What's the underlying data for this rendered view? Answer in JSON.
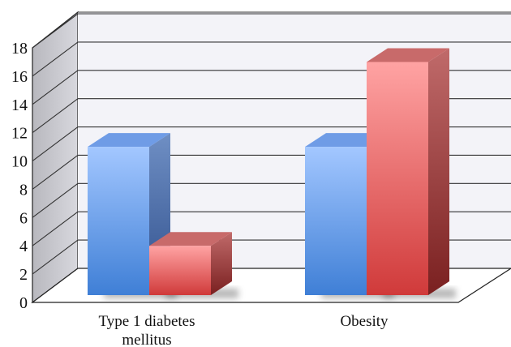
{
  "chart_data": {
    "type": "bar",
    "categories": [
      {
        "lines": [
          "Type 1 diabetes",
          "mellitus"
        ]
      },
      {
        "lines": [
          "Obesity"
        ]
      }
    ],
    "series": [
      {
        "color": "#5b8fde",
        "values": [
          11,
          11
        ]
      },
      {
        "color": "#e05a5a",
        "values": [
          4,
          17
        ]
      }
    ],
    "ylim": [
      0,
      18
    ],
    "yticks": [
      0,
      2,
      4,
      6,
      8,
      10,
      12,
      14,
      16,
      18
    ],
    "grid": true
  }
}
